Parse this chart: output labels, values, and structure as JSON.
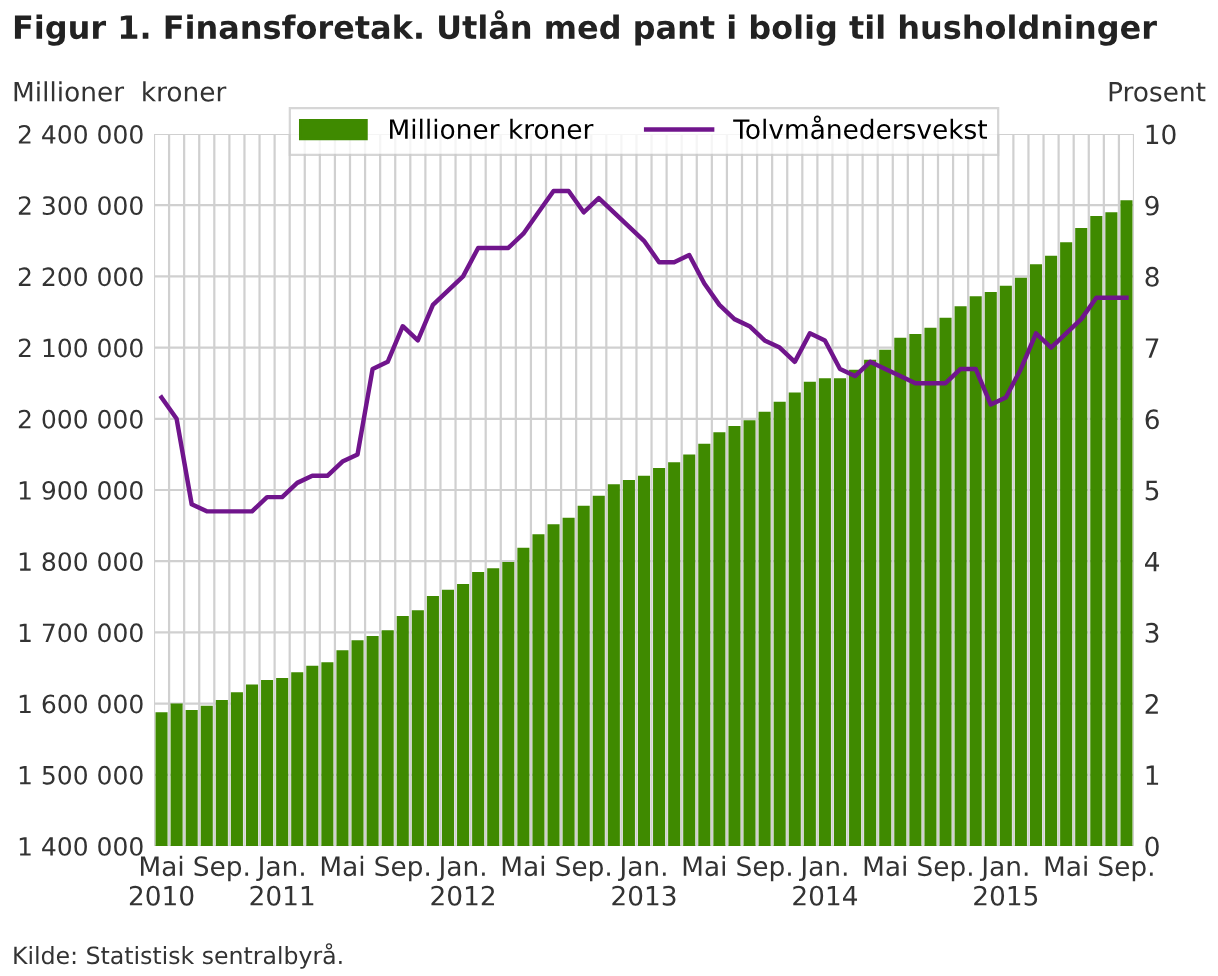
{
  "chart_data": {
    "type": "bar",
    "title": "Figur 1. Finansforetak. Utlån med pant i bolig til husholdninger",
    "ylabel": "Millioner  kroner",
    "y2label": "Prosent",
    "categories": [
      "Mai\n2010",
      null,
      null,
      null,
      "Sep.",
      null,
      null,
      null,
      "Jan.\n2011",
      null,
      null,
      null,
      "Mai",
      null,
      null,
      null,
      "Sep.",
      null,
      null,
      null,
      "Jan.\n2012",
      null,
      null,
      null,
      "Mai",
      null,
      null,
      null,
      "Sep.",
      null,
      null,
      null,
      "Jan.\n2013",
      null,
      null,
      null,
      "Mai",
      null,
      null,
      null,
      "Sep.",
      null,
      null,
      null,
      "Jan.\n2014",
      null,
      null,
      null,
      "Mai",
      null,
      null,
      null,
      "Sep.",
      null,
      null,
      null,
      "Jan.\n2015",
      null,
      null,
      null,
      "Mai",
      null,
      null,
      null,
      "Sep."
    ],
    "series": [
      {
        "name": "Millioner kroner",
        "color": "#3f8a00",
        "values": [
          1588000,
          1600000,
          1591000,
          1597000,
          1605000,
          1616000,
          1627000,
          1633000,
          1636000,
          1644000,
          1653000,
          1658000,
          1675000,
          1689000,
          1695000,
          1703000,
          1723000,
          1731000,
          1751000,
          1760000,
          1768000,
          1785000,
          1790000,
          1799000,
          1819000,
          1838000,
          1852000,
          1861000,
          1878000,
          1892000,
          1908000,
          1914000,
          1920000,
          1931000,
          1939000,
          1950000,
          1965000,
          1981000,
          1990000,
          1998000,
          2010000,
          2024000,
          2037000,
          2052000,
          2057000,
          2057000,
          2069000,
          2083000,
          2097000,
          2114000,
          2119000,
          2128000,
          2142000,
          2158000,
          2172000,
          2178000,
          2187000,
          2198000,
          2217000,
          2229000,
          2248000,
          2268000,
          2285000,
          2290000,
          2307000
        ]
      },
      {
        "name": "Tolvmånedersvekst",
        "type": "line",
        "axis": "y2",
        "color": "#70158c",
        "values": [
          6.3,
          6.0,
          4.8,
          4.7,
          4.7,
          4.7,
          4.7,
          4.9,
          4.9,
          5.1,
          5.2,
          5.2,
          5.4,
          5.5,
          6.7,
          6.8,
          7.3,
          7.1,
          7.6,
          7.8,
          8.0,
          8.4,
          8.4,
          8.4,
          8.6,
          8.9,
          9.2,
          9.2,
          8.9,
          9.1,
          8.9,
          8.7,
          8.5,
          8.2,
          8.2,
          8.3,
          7.9,
          7.6,
          7.4,
          7.3,
          7.1,
          7.0,
          6.8,
          7.2,
          7.1,
          6.7,
          6.6,
          6.8,
          6.7,
          6.6,
          6.5,
          6.5,
          6.5,
          6.7,
          6.7,
          6.2,
          6.3,
          6.7,
          7.2,
          7.0,
          7.2,
          7.4,
          7.7,
          7.7,
          7.7
        ]
      }
    ],
    "ylim": [
      1400000,
      2400000
    ],
    "yticks": [
      {
        "value": 1400000,
        "label": "1 400 000"
      },
      {
        "value": 1500000,
        "label": "1 500 000"
      },
      {
        "value": 1600000,
        "label": "1 600 000"
      },
      {
        "value": 1700000,
        "label": "1 700 000"
      },
      {
        "value": 1800000,
        "label": "1 800 000"
      },
      {
        "value": 1900000,
        "label": "1 900 000"
      },
      {
        "value": 2000000,
        "label": "2 000 000"
      },
      {
        "value": 2100000,
        "label": "2 100 000"
      },
      {
        "value": 2200000,
        "label": "2 200 000"
      },
      {
        "value": 2300000,
        "label": "2 300 000"
      },
      {
        "value": 2400000,
        "label": "2 400 000"
      }
    ],
    "y2lim": [
      0,
      10
    ],
    "y2ticks": [
      0,
      1,
      2,
      3,
      4,
      5,
      6,
      7,
      8,
      9,
      10
    ],
    "grid": true,
    "legend": "top",
    "marker": "none",
    "line_style": "solid",
    "annotations": [
      "Kilde: Statistisk sentralbyrå."
    ]
  }
}
